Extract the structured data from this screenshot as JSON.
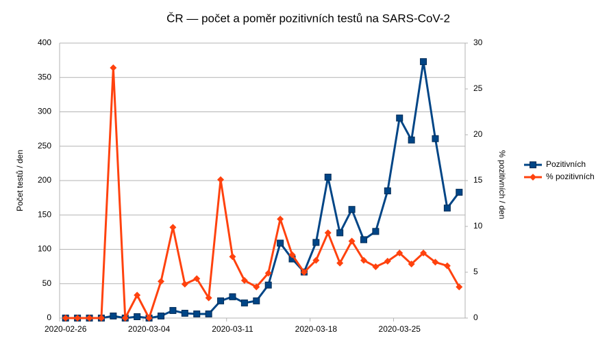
{
  "chart_data": {
    "type": "line",
    "title": "ČR — počet a poměr pozitivních testů na SARS-CoV-2",
    "y_label": "Počet testů / den",
    "y2_label": "% pozitivních / den",
    "categories": [
      "2020-02-26",
      null,
      null,
      null,
      null,
      null,
      null,
      "2020-03-04",
      null,
      null,
      null,
      null,
      null,
      null,
      "2020-03-11",
      null,
      null,
      null,
      null,
      null,
      null,
      "2020-03-18",
      null,
      null,
      null,
      null,
      null,
      null,
      "2020-03-25",
      null,
      null,
      null,
      null,
      null
    ],
    "series": [
      {
        "name": "Pozitivních",
        "color": "#004586",
        "marker": "square",
        "axis": "y",
        "values": [
          0,
          0,
          0,
          0,
          3,
          0,
          2,
          0,
          3,
          11,
          7,
          6,
          6,
          25,
          31,
          22,
          25,
          48,
          109,
          86,
          67,
          110,
          205,
          124,
          158,
          114,
          126,
          185,
          291,
          259,
          373,
          261,
          160,
          183
        ]
      },
      {
        "name": "% pozitivních",
        "color": "#ff420e",
        "marker": "diamond",
        "axis": "y2",
        "values": [
          0,
          0,
          0,
          0,
          27.3,
          0,
          2.5,
          0,
          4.0,
          9.9,
          3.7,
          4.3,
          2.2,
          15.1,
          6.7,
          4.1,
          3.4,
          4.9,
          10.8,
          6.9,
          5.0,
          6.3,
          9.3,
          6.0,
          8.4,
          6.3,
          5.6,
          6.2,
          7.1,
          5.9,
          7.1,
          6.1,
          5.7,
          3.4
        ]
      }
    ],
    "ylim": [
      0,
      400
    ],
    "yticks": [
      0,
      50,
      100,
      150,
      200,
      250,
      300,
      350,
      400
    ],
    "y2lim": [
      0,
      30
    ],
    "y2ticks": [
      0,
      5,
      10,
      15,
      20,
      25,
      30
    ],
    "grid": true,
    "legend": "right"
  }
}
